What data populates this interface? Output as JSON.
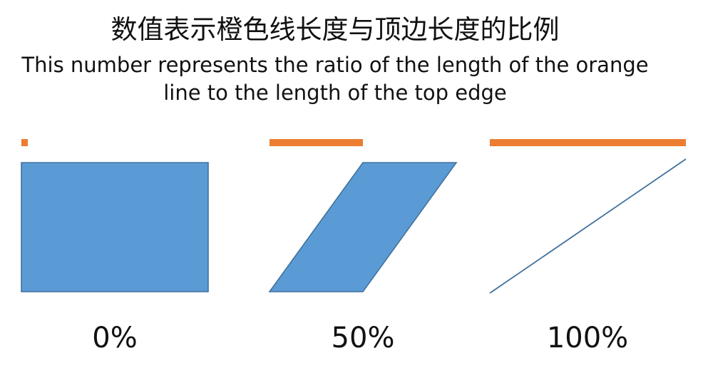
{
  "title": "数值表示橙色线长度与顶边长度的比例",
  "subtitle_line1": "This number represents the ratio of the length of the orange",
  "subtitle_line2": "line to the length of the top edge",
  "colors": {
    "orange": "#ED7D31",
    "shape_fill": "#5B9BD5",
    "shape_stroke": "#41719C"
  },
  "examples": [
    {
      "ratio": 0.0,
      "label": "0%"
    },
    {
      "ratio": 0.5,
      "label": "50%"
    },
    {
      "ratio": 1.0,
      "label": "100%"
    }
  ]
}
